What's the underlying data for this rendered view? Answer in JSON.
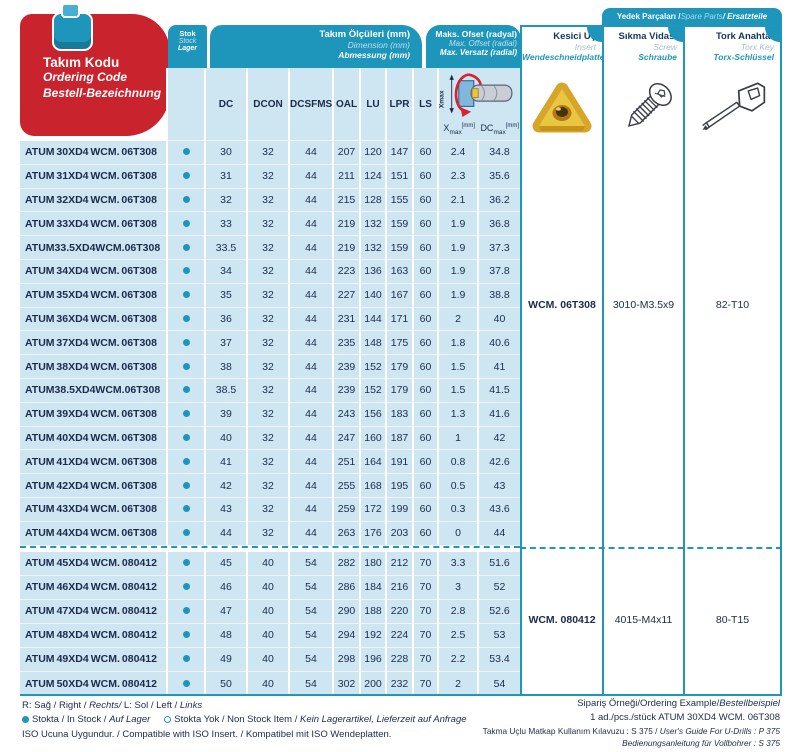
{
  "title_box": {
    "line1": "Takım Kodu",
    "line2": "Ordering Code",
    "line3": "Bestell-Bezeichnung"
  },
  "header": {
    "stock": {
      "tr": "Stok",
      "en": "Stock",
      "de": "Lager"
    },
    "dimensions": {
      "tr": "Takım Ölçüleri (mm)",
      "en": "Dimension (mm)",
      "de": "Abmessung (mm)"
    },
    "dim_columns": [
      "DC",
      "DCON",
      "DCSFMS",
      "OAL",
      "LU",
      "LPR",
      "LS"
    ],
    "offset": {
      "tr": "Maks. Ofset (radyal)",
      "en": "Max. Offset (radial)",
      "de": "Max. Versatz (radial)"
    },
    "xmax_label": {
      "base": "X",
      "sub": "max",
      "unit": "[mm]"
    },
    "dcmax_label": {
      "base": "DC",
      "sub": "max",
      "unit": "[mm]"
    },
    "diagram_label": "Xmax",
    "insert": {
      "tr": "Kesici Uç",
      "en": "Insert",
      "de": "Wendeschneidplatte"
    },
    "spare_bar": {
      "tr": "Yedek Parçaları / ",
      "en": "Spare Parts",
      "de": " / Ersatzteile"
    },
    "screw": {
      "tr": "Sıkma Vidası",
      "en": "Screw",
      "de": "Schraube"
    },
    "torx": {
      "tr": "Tork Anahtar",
      "en": "Torx Key",
      "de": "Torx-Schlüssel"
    }
  },
  "groups": [
    {
      "insert": "WCM. 06T308",
      "screw": "3010-M3.5x9",
      "torx": "82-T10"
    },
    {
      "insert": "WCM. 080412",
      "screw": "4015-M4x11",
      "torx": "80-T15"
    }
  ],
  "rows": [
    {
      "code": "ATUM 30XD4 WCM. 06T308",
      "stock": true,
      "dc": "30",
      "dcon": "32",
      "dcsfms": "44",
      "oal": "207",
      "lu": "120",
      "lpr": "147",
      "ls": "60",
      "xmax": "2.4",
      "dcmax": "34.8",
      "group": 0
    },
    {
      "code": "ATUM 31XD4 WCM. 06T308",
      "stock": true,
      "dc": "31",
      "dcon": "32",
      "dcsfms": "44",
      "oal": "211",
      "lu": "124",
      "lpr": "151",
      "ls": "60",
      "xmax": "2.3",
      "dcmax": "35.6",
      "group": 0
    },
    {
      "code": "ATUM 32XD4 WCM. 06T308",
      "stock": true,
      "dc": "32",
      "dcon": "32",
      "dcsfms": "44",
      "oal": "215",
      "lu": "128",
      "lpr": "155",
      "ls": "60",
      "xmax": "2.1",
      "dcmax": "36.2",
      "group": 0
    },
    {
      "code": "ATUM 33XD4 WCM. 06T308",
      "stock": true,
      "dc": "33",
      "dcon": "32",
      "dcsfms": "44",
      "oal": "219",
      "lu": "132",
      "lpr": "159",
      "ls": "60",
      "xmax": "1.9",
      "dcmax": "36.8",
      "group": 0
    },
    {
      "code": "ATUM 33.5XD4 WCM. 06T308",
      "stock": true,
      "dc": "33.5",
      "dcon": "32",
      "dcsfms": "44",
      "oal": "219",
      "lu": "132",
      "lpr": "159",
      "ls": "60",
      "xmax": "1.9",
      "dcmax": "37.3",
      "group": 0
    },
    {
      "code": "ATUM 34XD4 WCM. 06T308",
      "stock": true,
      "dc": "34",
      "dcon": "32",
      "dcsfms": "44",
      "oal": "223",
      "lu": "136",
      "lpr": "163",
      "ls": "60",
      "xmax": "1.9",
      "dcmax": "37.8",
      "group": 0
    },
    {
      "code": "ATUM 35XD4 WCM. 06T308",
      "stock": true,
      "dc": "35",
      "dcon": "32",
      "dcsfms": "44",
      "oal": "227",
      "lu": "140",
      "lpr": "167",
      "ls": "60",
      "xmax": "1.9",
      "dcmax": "38.8",
      "group": 0
    },
    {
      "code": "ATUM 36XD4 WCM. 06T308",
      "stock": true,
      "dc": "36",
      "dcon": "32",
      "dcsfms": "44",
      "oal": "231",
      "lu": "144",
      "lpr": "171",
      "ls": "60",
      "xmax": "2",
      "dcmax": "40",
      "group": 0
    },
    {
      "code": "ATUM 37XD4 WCM. 06T308",
      "stock": true,
      "dc": "37",
      "dcon": "32",
      "dcsfms": "44",
      "oal": "235",
      "lu": "148",
      "lpr": "175",
      "ls": "60",
      "xmax": "1.8",
      "dcmax": "40.6",
      "group": 0
    },
    {
      "code": "ATUM 38XD4 WCM. 06T308",
      "stock": true,
      "dc": "38",
      "dcon": "32",
      "dcsfms": "44",
      "oal": "239",
      "lu": "152",
      "lpr": "179",
      "ls": "60",
      "xmax": "1.5",
      "dcmax": "41",
      "group": 0
    },
    {
      "code": "ATUM 38.5XD4 WCM. 06T308",
      "stock": true,
      "dc": "38.5",
      "dcon": "32",
      "dcsfms": "44",
      "oal": "239",
      "lu": "152",
      "lpr": "179",
      "ls": "60",
      "xmax": "1.5",
      "dcmax": "41.5",
      "group": 0
    },
    {
      "code": "ATUM 39XD4 WCM. 06T308",
      "stock": true,
      "dc": "39",
      "dcon": "32",
      "dcsfms": "44",
      "oal": "243",
      "lu": "156",
      "lpr": "183",
      "ls": "60",
      "xmax": "1.3",
      "dcmax": "41.6",
      "group": 0
    },
    {
      "code": "ATUM 40XD4 WCM. 06T308",
      "stock": true,
      "dc": "40",
      "dcon": "32",
      "dcsfms": "44",
      "oal": "247",
      "lu": "160",
      "lpr": "187",
      "ls": "60",
      "xmax": "1",
      "dcmax": "42",
      "group": 0
    },
    {
      "code": "ATUM 41XD4 WCM. 06T308",
      "stock": true,
      "dc": "41",
      "dcon": "32",
      "dcsfms": "44",
      "oal": "251",
      "lu": "164",
      "lpr": "191",
      "ls": "60",
      "xmax": "0.8",
      "dcmax": "42.6",
      "group": 0
    },
    {
      "code": "ATUM 42XD4 WCM. 06T308",
      "stock": true,
      "dc": "42",
      "dcon": "32",
      "dcsfms": "44",
      "oal": "255",
      "lu": "168",
      "lpr": "195",
      "ls": "60",
      "xmax": "0.5",
      "dcmax": "43",
      "group": 0
    },
    {
      "code": "ATUM 43XD4 WCM. 06T308",
      "stock": true,
      "dc": "43",
      "dcon": "32",
      "dcsfms": "44",
      "oal": "259",
      "lu": "172",
      "lpr": "199",
      "ls": "60",
      "xmax": "0.3",
      "dcmax": "43.6",
      "group": 0
    },
    {
      "code": "ATUM 44XD4 WCM. 06T308",
      "stock": true,
      "dc": "44",
      "dcon": "32",
      "dcsfms": "44",
      "oal": "263",
      "lu": "176",
      "lpr": "203",
      "ls": "60",
      "xmax": "0",
      "dcmax": "44",
      "group": 0
    },
    {
      "code": "ATUM 45XD4 WCM. 080412",
      "stock": true,
      "dc": "45",
      "dcon": "40",
      "dcsfms": "54",
      "oal": "282",
      "lu": "180",
      "lpr": "212",
      "ls": "70",
      "xmax": "3.3",
      "dcmax": "51.6",
      "group": 1
    },
    {
      "code": "ATUM 46XD4 WCM. 080412",
      "stock": true,
      "dc": "46",
      "dcon": "40",
      "dcsfms": "54",
      "oal": "286",
      "lu": "184",
      "lpr": "216",
      "ls": "70",
      "xmax": "3",
      "dcmax": "52",
      "group": 1
    },
    {
      "code": "ATUM 47XD4 WCM. 080412",
      "stock": true,
      "dc": "47",
      "dcon": "40",
      "dcsfms": "54",
      "oal": "290",
      "lu": "188",
      "lpr": "220",
      "ls": "70",
      "xmax": "2.8",
      "dcmax": "52.6",
      "group": 1
    },
    {
      "code": "ATUM 48XD4 WCM. 080412",
      "stock": true,
      "dc": "48",
      "dcon": "40",
      "dcsfms": "54",
      "oal": "294",
      "lu": "192",
      "lpr": "224",
      "ls": "70",
      "xmax": "2.5",
      "dcmax": "53",
      "group": 1
    },
    {
      "code": "ATUM 49XD4 WCM. 080412",
      "stock": true,
      "dc": "49",
      "dcon": "40",
      "dcsfms": "54",
      "oal": "298",
      "lu": "196",
      "lpr": "228",
      "ls": "70",
      "xmax": "2.2",
      "dcmax": "53.4",
      "group": 1
    },
    {
      "code": "ATUM 50XD4 WCM. 080412",
      "stock": true,
      "dc": "50",
      "dcon": "40",
      "dcsfms": "54",
      "oal": "302",
      "lu": "200",
      "lpr": "232",
      "ls": "70",
      "xmax": "2",
      "dcmax": "54",
      "group": 1
    }
  ],
  "footer": {
    "left1a": "R: Sağ / Right / ",
    "left1b": "Rechts/",
    "left1c": "  L: Sol / Left / ",
    "left1d": "Links",
    "left2a": "Stokta / In Stock / ",
    "left2b": "Auf Lager",
    "left2c": "Stokta Yok / Non Stock Item / ",
    "left2d": "Kein Lagerartikel, Lieferzeit auf Anfrage",
    "left3": "ISO Ucuna Uygundur. / Compatible with ISO Insert. / Kompatibel mit ISO Wendeplatten.",
    "right1a": "Sipariş Örneği/Ordering Example/",
    "right1b": "Bestellbeispiel",
    "right2": "1 ad./pcs./stück ATUM 30XD4 WCM. 06T308",
    "right3a": "Takma Uçlu Matkap Kullanım Kılavuzu : S 375 / ",
    "right3b": "User's Guide For U-Drills : P 375",
    "right4": "Bedienungsanleitung für Vollbohrer : S 375"
  },
  "icons": {
    "tool_icon": "u-drill-icon",
    "offset_diagram": "radial-offset-diagram",
    "insert_image": "trigon-insert-illustration",
    "screw_image": "clamping-screw-illustration",
    "torx_image": "torx-key-illustration"
  },
  "colors": {
    "teal": "#1E95BA",
    "light_blue": "#CEE6F2",
    "red": "#C9232D",
    "navy": "#1C2B4A",
    "insert_yellow": "#E9C63F"
  }
}
